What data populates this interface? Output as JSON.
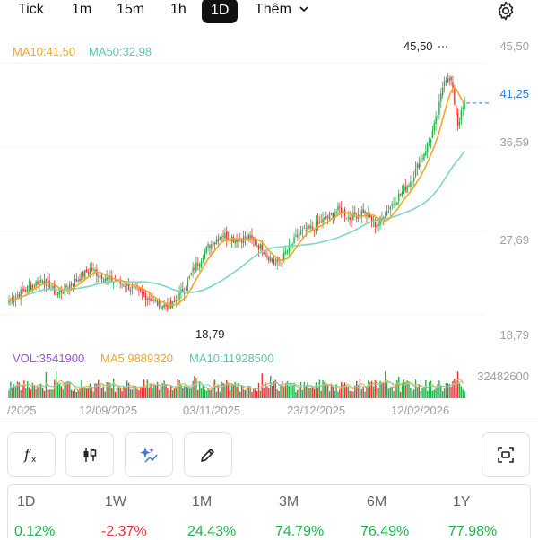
{
  "tabs": [
    {
      "label": "Tick",
      "active": false
    },
    {
      "label": "1m",
      "active": false
    },
    {
      "label": "15m",
      "active": false
    },
    {
      "label": "1h",
      "active": false
    },
    {
      "label": "1D",
      "active": true
    }
  ],
  "more_label": "Thêm",
  "chevron_icon": "chevron-down-icon",
  "settings_icon": "gear-icon",
  "price_legend": {
    "ma10": "MA10:41,50",
    "ma50": "MA50:32,98"
  },
  "vol_legend": {
    "vol": "VOL:3541900",
    "ma5": "MA5:9889320",
    "ma10": "MA10:11928500"
  },
  "colors": {
    "up": "#21b14a",
    "down": "#e5343d",
    "ma10": "#f5a623",
    "ma50": "#7fd6c2",
    "last": "#2e7de1",
    "vol": "#9b51e0"
  },
  "chart_data": {
    "type": "candlestick",
    "y_ticks": [
      "45,50",
      "36,59",
      "27,69",
      "18,79"
    ],
    "ylim": [
      16.2,
      48.0
    ],
    "last_price": "41,25",
    "high_label": "45,50",
    "low_label": "18,79",
    "vol_max_label": "32482600",
    "x_ticks": [
      "/2025",
      "12/09/2025",
      "03/11/2025",
      "23/12/2025",
      "12/02/2026"
    ]
  },
  "tools": [
    "fx-icon",
    "candlestick-icon",
    "ai-sparkle-icon",
    "pencil-icon",
    "screenshot-icon"
  ],
  "performance": [
    {
      "label": "1D",
      "value": "0.12%",
      "trend": "pos"
    },
    {
      "label": "1W",
      "value": "-2.37%",
      "trend": "neg"
    },
    {
      "label": "1M",
      "value": "24.43%",
      "trend": "pos"
    },
    {
      "label": "3M",
      "value": "74.79%",
      "trend": "pos"
    },
    {
      "label": "6M",
      "value": "76.49%",
      "trend": "pos"
    },
    {
      "label": "1Y",
      "value": "77.98%",
      "trend": "pos"
    }
  ]
}
